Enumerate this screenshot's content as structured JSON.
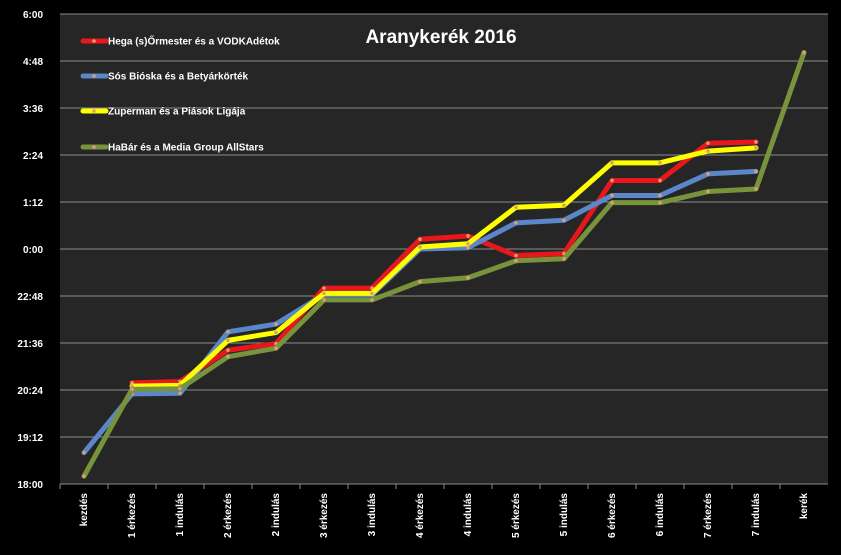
{
  "chart_data": {
    "type": "line",
    "title": "Aranykerék 2016",
    "xlabel": "",
    "ylabel": "",
    "categories": [
      "kezdés",
      "1 érkezés",
      "1 indulás",
      "2 érkezés",
      "2 indulás",
      "3 érkezés",
      "3 indulás",
      "4 érkezés",
      "4 indulás",
      "5 érkezés",
      "5 indulás",
      "6 érkezés",
      "6 indulás",
      "7 érkezés",
      "7 indulás",
      "kerék"
    ],
    "y_ticks": [
      "18:00",
      "19:12",
      "20:24",
      "21:36",
      "22:48",
      "0:00",
      "1:12",
      "2:24",
      "3:36",
      "4:48",
      "6:00"
    ],
    "ylim_minutes": [
      0,
      720
    ],
    "grid": true,
    "legend_position": "top-left",
    "series": [
      {
        "name": "Hega (s)Őrmester és a VODKAdétok",
        "color": "#e8171b",
        "values_minutes": [
          null,
          155,
          157,
          205,
          215,
          300,
          300,
          375,
          380,
          350,
          353,
          465,
          465,
          522,
          524,
          null
        ]
      },
      {
        "name": "Sós Bióska és a Betyárkörték",
        "color": "#5b86c9",
        "values_minutes": [
          48,
          138,
          139,
          233,
          245,
          290,
          290,
          360,
          362,
          400,
          404,
          442,
          442,
          475,
          479,
          null
        ]
      },
      {
        "name": "Zuperman és a Piások Ligája",
        "color": "#ffff00",
        "values_minutes": [
          null,
          150,
          151,
          220,
          232,
          292,
          292,
          363,
          368,
          424,
          427,
          492,
          492,
          510,
          515,
          null
        ]
      },
      {
        "name": "HaBár és a Media Group AllStars",
        "color": "#77933c",
        "values_minutes": [
          12,
          145,
          146,
          195,
          208,
          282,
          282,
          310,
          316,
          342,
          345,
          431,
          431,
          448,
          452,
          661
        ]
      }
    ]
  }
}
